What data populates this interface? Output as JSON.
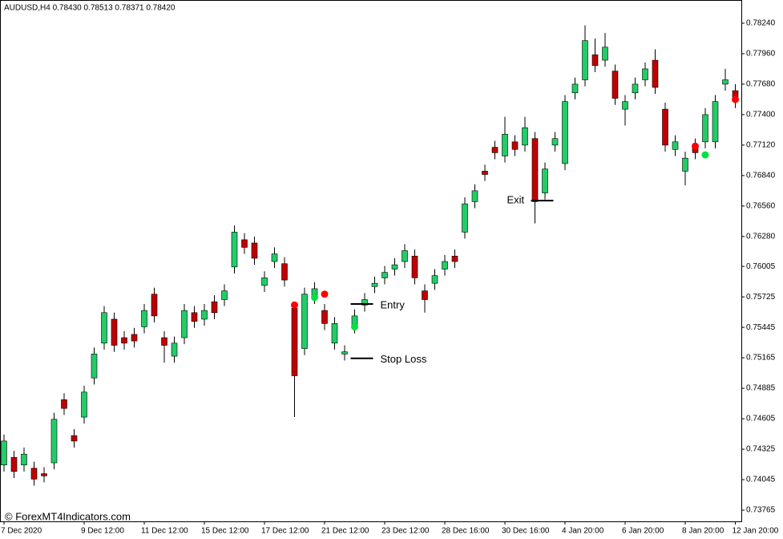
{
  "chart_data": {
    "type": "candlestick",
    "title": "AUDUSD,H4  0.78430 0.78513 0.78371 0.78420",
    "watermark": "© ForexMT4Indicators.com",
    "up_color": "#22cc66",
    "down_color": "#c00000",
    "categories": [
      "7 Dec 2020",
      null,
      null,
      null,
      null,
      null,
      null,
      null,
      "9 Dec 12:00",
      null,
      null,
      null,
      null,
      null,
      "11 Dec 12:00",
      null,
      null,
      null,
      null,
      null,
      "15 Dec 12:00",
      null,
      null,
      null,
      null,
      null,
      "17 Dec 12:00",
      null,
      null,
      null,
      null,
      null,
      "21 Dec 12:00",
      null,
      null,
      null,
      null,
      null,
      "23 Dec 12:00",
      null,
      null,
      null,
      null,
      null,
      "28 Dec 16:00",
      null,
      null,
      null,
      null,
      null,
      "30 Dec 16:00",
      null,
      null,
      null,
      null,
      null,
      "4 Jan 20:00",
      null,
      null,
      null,
      null,
      null,
      "6 Jan 20:00",
      null,
      null,
      null,
      null,
      null,
      "8 Jan 20:00",
      null,
      null,
      null,
      null,
      "12 Jan 20:00"
    ],
    "open": [
      0.7418,
      0.7425,
      0.7418,
      0.7415,
      0.741,
      0.742,
      0.7478,
      0.7445,
      0.7462,
      0.7498,
      0.753,
      0.7552,
      0.7535,
      0.7538,
      0.7545,
      0.7575,
      0.7535,
      0.7518,
      0.7535,
      0.7558,
      0.7552,
      0.7568,
      0.757,
      0.76,
      0.7625,
      0.7622,
      0.7583,
      0.7605,
      0.7603,
      0.7562,
      0.7525,
      0.7572,
      0.756,
      0.753,
      0.752,
      0.7545,
      0.7565,
      0.7582,
      0.759,
      0.7598,
      0.7605,
      0.761,
      0.7578,
      0.7585,
      0.7598,
      0.761,
      0.7632,
      0.766,
      0.7688,
      0.771,
      0.7702,
      0.7715,
      0.7712,
      0.7718,
      0.7668,
      0.7712,
      0.7695,
      0.776,
      0.7772,
      0.7795,
      0.779,
      0.778,
      0.7745,
      0.776,
      0.7772,
      0.779,
      0.7745,
      0.7708,
      0.7688,
      0.7712,
      0.7715,
      0.7715,
      0.7768,
      0.7762
    ],
    "high": [
      0.7446,
      0.7431,
      0.7434,
      0.7421,
      0.7416,
      0.7466,
      0.7484,
      0.7451,
      0.7491,
      0.7526,
      0.7564,
      0.7558,
      0.7541,
      0.7544,
      0.7566,
      0.7581,
      0.7541,
      0.7536,
      0.7566,
      0.7564,
      0.7566,
      0.7574,
      0.7584,
      0.7638,
      0.7631,
      0.7628,
      0.7596,
      0.7618,
      0.7609,
      0.7568,
      0.7581,
      0.7586,
      0.7566,
      0.7554,
      0.7528,
      0.7561,
      0.7576,
      0.7591,
      0.7601,
      0.7608,
      0.7621,
      0.7616,
      0.7584,
      0.7598,
      0.7611,
      0.7616,
      0.7664,
      0.7676,
      0.7694,
      0.7716,
      0.7738,
      0.7721,
      0.7738,
      0.7724,
      0.7696,
      0.7724,
      0.7758,
      0.7774,
      0.7822,
      0.781,
      0.7815,
      0.7786,
      0.7758,
      0.7774,
      0.7788,
      0.78,
      0.7751,
      0.7721,
      0.7706,
      0.7718,
      0.7746,
      0.7758,
      0.7782,
      0.7768
    ],
    "low": [
      0.7412,
      0.7406,
      0.7412,
      0.7399,
      0.7402,
      0.7414,
      0.7464,
      0.7434,
      0.7456,
      0.7492,
      0.7524,
      0.7522,
      0.7524,
      0.7526,
      0.7539,
      0.7549,
      0.7512,
      0.7512,
      0.7529,
      0.7544,
      0.7546,
      0.7552,
      0.7564,
      0.7594,
      0.7612,
      0.7602,
      0.7577,
      0.7599,
      0.7582,
      0.7462,
      0.7519,
      0.7566,
      0.7542,
      0.7524,
      0.7514,
      0.7539,
      0.7559,
      0.7576,
      0.7584,
      0.7592,
      0.7599,
      0.7584,
      0.7558,
      0.7579,
      0.7592,
      0.7599,
      0.7626,
      0.7654,
      0.7679,
      0.7699,
      0.7696,
      0.7702,
      0.7706,
      0.764,
      0.7662,
      0.7706,
      0.7689,
      0.7754,
      0.7766,
      0.7779,
      0.7784,
      0.7749,
      0.773,
      0.7754,
      0.7766,
      0.7759,
      0.7706,
      0.7702,
      0.7675,
      0.7699,
      0.7709,
      0.7709,
      0.7762,
      0.7746
    ],
    "close": [
      0.744,
      0.7412,
      0.7428,
      0.7405,
      0.7408,
      0.746,
      0.747,
      0.744,
      0.7485,
      0.752,
      0.7558,
      0.7528,
      0.753,
      0.7532,
      0.756,
      0.7555,
      0.7528,
      0.753,
      0.756,
      0.755,
      0.756,
      0.7558,
      0.7578,
      0.7632,
      0.7618,
      0.7608,
      0.759,
      0.7612,
      0.7588,
      0.75,
      0.7575,
      0.758,
      0.7548,
      0.7548,
      0.7522,
      0.7555,
      0.757,
      0.7585,
      0.7595,
      0.7602,
      0.7615,
      0.759,
      0.757,
      0.7592,
      0.7605,
      0.7605,
      0.7658,
      0.767,
      0.7685,
      0.7705,
      0.7722,
      0.7708,
      0.7728,
      0.766,
      0.769,
      0.7718,
      0.7752,
      0.7768,
      0.7808,
      0.7785,
      0.7802,
      0.7755,
      0.7752,
      0.7768,
      0.7782,
      0.7765,
      0.7712,
      0.7715,
      0.77,
      0.7705,
      0.774,
      0.7752,
      0.7772,
      0.7752
    ],
    "series": [
      {
        "color": "#ff0000",
        "values": [
          null,
          null,
          null,
          null,
          null,
          null,
          null,
          null,
          null,
          null,
          null,
          null,
          null,
          null,
          null,
          null,
          null,
          null,
          null,
          null,
          null,
          null,
          null,
          null,
          null,
          null,
          null,
          null,
          null,
          0.7565,
          null,
          null,
          0.7575,
          null,
          null,
          null,
          null,
          null,
          null,
          null,
          null,
          null,
          null,
          null,
          null,
          null,
          null,
          null,
          null,
          null,
          null,
          null,
          null,
          null,
          null,
          null,
          null,
          null,
          null,
          null,
          null,
          null,
          null,
          null,
          null,
          null,
          null,
          null,
          null,
          0.7711,
          null,
          null,
          null,
          0.7754
        ]
      },
      {
        "color": "#00e040",
        "values": [
          null,
          null,
          null,
          null,
          null,
          null,
          null,
          null,
          null,
          null,
          null,
          null,
          null,
          null,
          null,
          null,
          null,
          null,
          null,
          null,
          null,
          null,
          null,
          null,
          null,
          null,
          null,
          null,
          null,
          null,
          null,
          0.7572,
          null,
          null,
          null,
          0.7545,
          null,
          null,
          null,
          null,
          null,
          null,
          null,
          null,
          null,
          null,
          null,
          null,
          null,
          null,
          null,
          null,
          null,
          null,
          null,
          null,
          null,
          null,
          null,
          null,
          null,
          null,
          null,
          null,
          null,
          null,
          null,
          null,
          null,
          null,
          0.7703,
          null,
          null,
          null
        ]
      }
    ],
    "annotations": [
      {
        "text": "Entry",
        "value": 0.7566,
        "index": 35
      },
      {
        "text": "Stop Loss",
        "value": 0.7516,
        "index": 35
      },
      {
        "text": "Exit",
        "value": 0.7661,
        "index": 53
      }
    ],
    "ylim": [
      0.73662,
      0.78446
    ],
    "yticks": [
      {
        "value": 0.7824,
        "label": "0.78240"
      },
      {
        "value": 0.7796,
        "label": "0.77960"
      },
      {
        "value": 0.7768,
        "label": "0.77680"
      },
      {
        "value": 0.774,
        "label": "0.77400"
      },
      {
        "value": 0.7712,
        "label": "0.77120"
      },
      {
        "value": 0.7684,
        "label": "0.76840"
      },
      {
        "value": 0.7656,
        "label": "0.76560"
      },
      {
        "value": 0.7628,
        "label": "0.76280"
      },
      {
        "value": 0.76005,
        "label": "0.76005"
      },
      {
        "value": 0.75725,
        "label": "0.75725"
      },
      {
        "value": 0.75445,
        "label": "0.75445"
      },
      {
        "value": 0.75165,
        "label": "0.75165"
      },
      {
        "value": 0.74885,
        "label": "0.74885"
      },
      {
        "value": 0.74605,
        "label": "0.74605"
      },
      {
        "value": 0.74325,
        "label": "0.74325"
      },
      {
        "value": 0.74045,
        "label": "0.74045"
      },
      {
        "value": 0.73765,
        "label": "0.73765"
      }
    ]
  }
}
